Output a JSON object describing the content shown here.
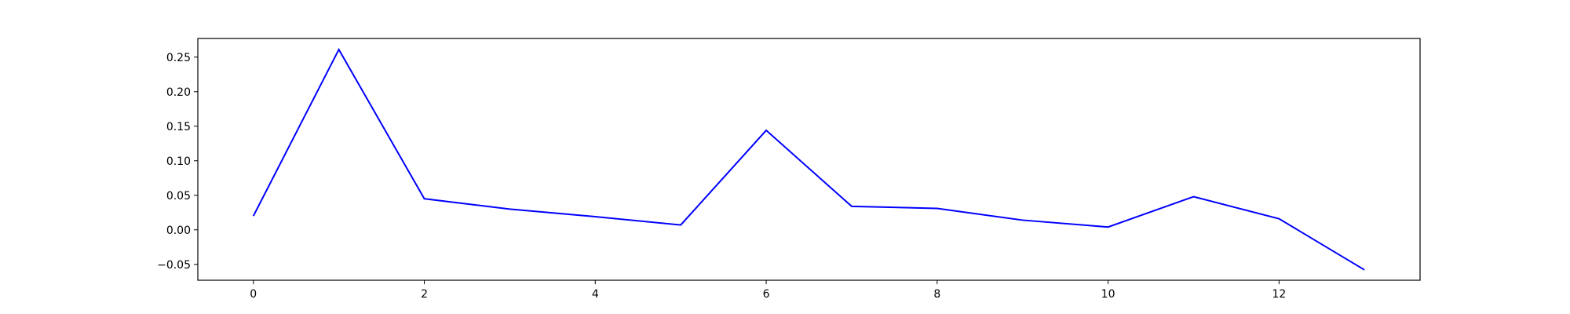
{
  "chart_data": {
    "type": "line",
    "title": "",
    "xlabel": "",
    "ylabel": "",
    "xlim": [
      -0.65,
      13.65
    ],
    "ylim": [
      -0.073,
      0.277
    ],
    "grid": false,
    "x_ticks": [
      0,
      2,
      4,
      6,
      8,
      10,
      12
    ],
    "x_tick_labels": [
      "0",
      "2",
      "4",
      "6",
      "8",
      "10",
      "12"
    ],
    "y_ticks": [
      -0.05,
      0.0,
      0.05,
      0.1,
      0.15,
      0.2,
      0.25
    ],
    "y_tick_labels": [
      "−0.05",
      "0.00",
      "0.05",
      "0.10",
      "0.15",
      "0.20",
      "0.25"
    ],
    "series": [
      {
        "color": "#0000ff",
        "x": [
          0,
          1,
          2,
          3,
          4,
          5,
          6,
          7,
          8,
          9,
          10,
          11,
          12,
          13
        ],
        "values": [
          0.02,
          0.261,
          0.045,
          0.03,
          0.019,
          0.007,
          0.144,
          0.034,
          0.031,
          0.014,
          0.004,
          0.048,
          0.016,
          -0.058
        ]
      }
    ]
  }
}
